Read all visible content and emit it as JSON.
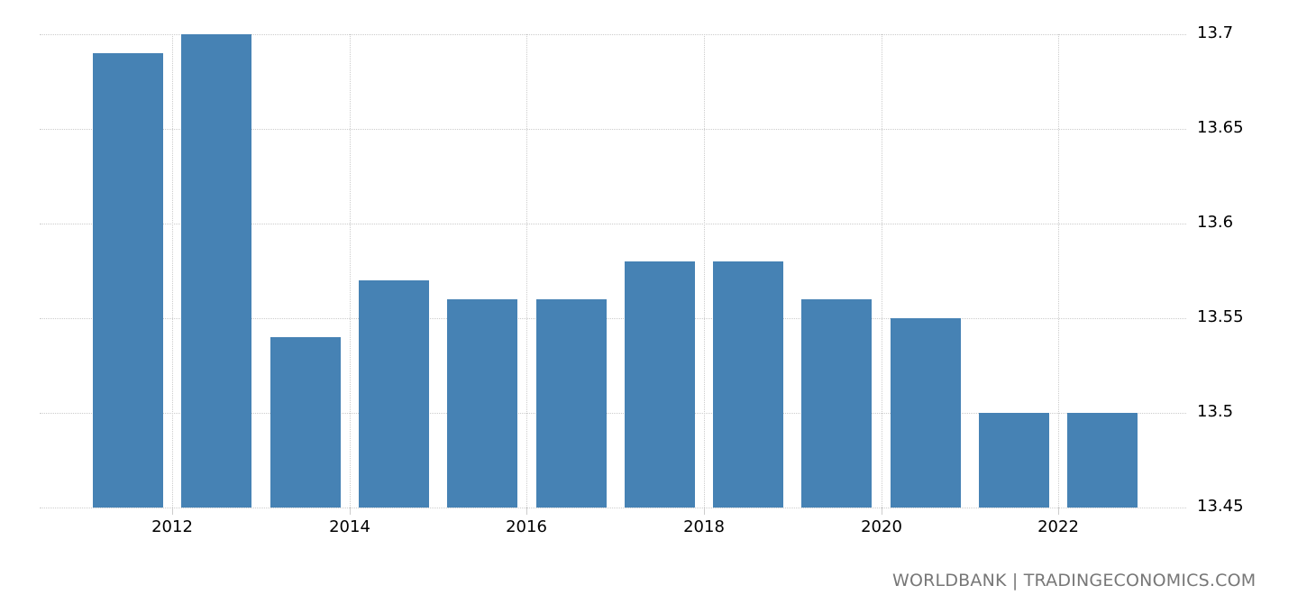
{
  "chart_data": {
    "type": "bar",
    "title": "",
    "xlabel": "",
    "ylabel": "",
    "categories": [
      "2011",
      "2012",
      "2013",
      "2014",
      "2015",
      "2016",
      "2017",
      "2018",
      "2019",
      "2020",
      "2021",
      "2022"
    ],
    "values": [
      13.69,
      13.7,
      13.54,
      13.57,
      13.56,
      13.56,
      13.58,
      13.58,
      13.56,
      13.55,
      13.5,
      13.5
    ],
    "ylim": [
      13.45,
      13.7
    ],
    "y_ticks": [
      "13.7",
      "13.65",
      "13.6",
      "13.55",
      "13.5",
      "13.45"
    ],
    "x_ticks": [
      "2012",
      "2014",
      "2016",
      "2018",
      "2020",
      "2022"
    ],
    "y_axis_position": "right",
    "grid": true,
    "bar_color": "#4682b4",
    "legend": null
  },
  "source_label": "WORLDBANK | TRADINGECONOMICS.COM"
}
